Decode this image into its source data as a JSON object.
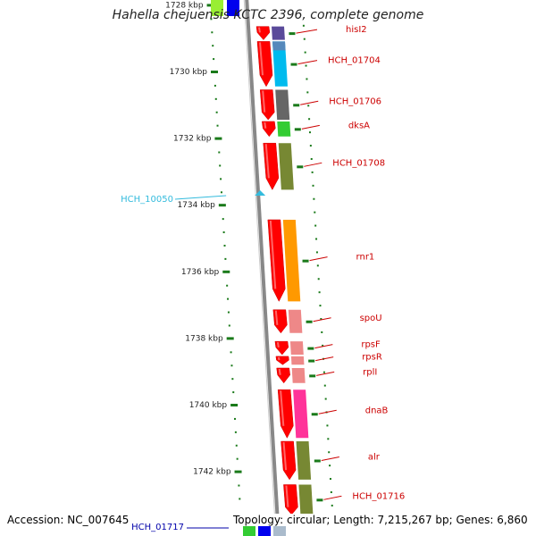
{
  "title": "Hahella chejuensis KCTC 2396, complete genome",
  "footer": {
    "accession": "Accession: NC_007645",
    "topology": "Topology: circular; Length: 7,215,267 bp; Genes: 6,860"
  },
  "colors": {
    "backbone": "#888888",
    "gene_arrow": "#ff0000",
    "tick": "#1a7a1a",
    "gene_label": "#cc0000",
    "blue_label": "#0000aa",
    "cyan_label": "#33bbdd"
  },
  "scale": {
    "unit": "kbp",
    "ticks": [
      {
        "value": 1728,
        "label": "1728 kbp"
      },
      {
        "value": 1730,
        "label": "1730 kbp"
      },
      {
        "value": 1732,
        "label": "1732 kbp"
      },
      {
        "value": 1734,
        "label": "1734 kbp"
      },
      {
        "value": 1736,
        "label": "1736 kbp"
      },
      {
        "value": 1738,
        "label": "1738 kbp"
      },
      {
        "value": 1740,
        "label": "1740 kbp"
      },
      {
        "value": 1742,
        "label": "1742 kbp"
      }
    ]
  },
  "genes": [
    {
      "label": "hisI2",
      "start": 1728.65,
      "end": 1729.05,
      "cog_color": "#5a4a9a",
      "arrow": "short"
    },
    {
      "label": "HCH_01704",
      "start": 1729.1,
      "end": 1730.45,
      "cog_color": "#00bbee",
      "arrow": "long",
      "top_band_color": "#5588bb"
    },
    {
      "label": "HCH_01706",
      "start": 1730.55,
      "end": 1731.45,
      "cog_color": "#666666",
      "arrow": "long"
    },
    {
      "label": "dksA",
      "start": 1731.5,
      "end": 1731.95,
      "cog_color": "#33cc33",
      "arrow": "short"
    },
    {
      "label": "HCH_01708",
      "start": 1732.15,
      "end": 1733.55,
      "cog_color": "#778833",
      "arrow": "long"
    },
    {
      "label": "rnr1",
      "start": 1734.45,
      "end": 1736.9,
      "cog_color": "#ff9900",
      "arrow": "long"
    },
    {
      "label": "spoU",
      "start": 1737.15,
      "end": 1737.85,
      "cog_color": "#ee8888",
      "arrow": "short"
    },
    {
      "label": "rpsF",
      "start": 1738.1,
      "end": 1738.5,
      "cog_color": "#ee8888",
      "arrow": "short"
    },
    {
      "label": "rpsR",
      "start": 1738.55,
      "end": 1738.8,
      "cog_color": "#ee8888",
      "arrow": "short"
    },
    {
      "label": "rplI",
      "start": 1738.9,
      "end": 1739.35,
      "cog_color": "#ee8888",
      "arrow": "short"
    },
    {
      "label": "dnaB",
      "start": 1739.55,
      "end": 1741.0,
      "cog_color": "#ff3399",
      "arrow": "long"
    },
    {
      "label": "alr",
      "start": 1741.1,
      "end": 1742.25,
      "cog_color": "#778833",
      "arrow": "long"
    },
    {
      "label": "HCH_01716",
      "start": 1742.4,
      "end": 1743.3,
      "cog_color": "#778833",
      "arrow": "long"
    }
  ],
  "inner_features": [
    {
      "label": "HCH_10050",
      "position": 1734.45,
      "color": "#33bbdd"
    }
  ],
  "bottom_feature": {
    "label": "HCH_01717",
    "color": "#0000aa"
  },
  "top_edge_blocks": [
    {
      "color": "#99ee33"
    },
    {
      "color": "#0000ee"
    }
  ],
  "bottom_edge_blocks": [
    {
      "color": "#33cc33"
    },
    {
      "color": "#0000ee"
    },
    {
      "color": "#aabbcc"
    }
  ]
}
